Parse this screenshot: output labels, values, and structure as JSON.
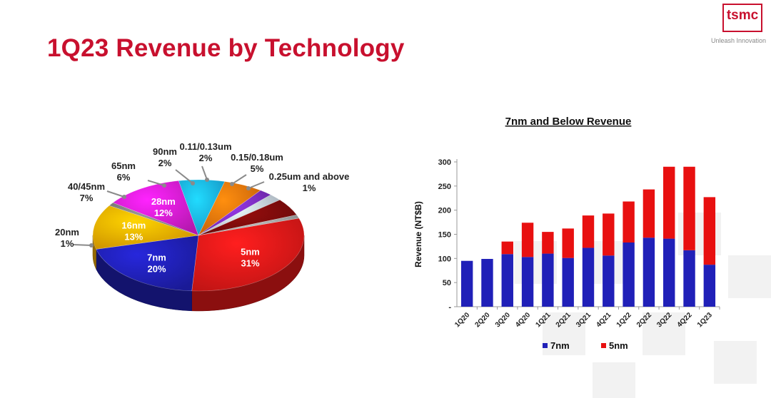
{
  "header": {
    "title": "1Q23 Revenue by Technology",
    "logo_text": "tsmc",
    "tagline": "Unleash Innovation"
  },
  "chart_data": [
    {
      "type": "pie",
      "title": "",
      "slices": [
        {
          "label": "5nm",
          "value": 31,
          "pct_label": "31%",
          "color": "#e01818"
        },
        {
          "label": "7nm",
          "value": 20,
          "pct_label": "20%",
          "color": "#1f1fb0"
        },
        {
          "label": "16nm",
          "value": 13,
          "pct_label": "13%",
          "color": "#f0aa00"
        },
        {
          "label": "20nm",
          "value": 1,
          "pct_label": "1%",
          "color": "#7a7a7a"
        },
        {
          "label": "28nm",
          "value": 12,
          "pct_label": "12%",
          "color": "#d41ccc"
        },
        {
          "label": "40/45nm",
          "value": 7,
          "pct_label": "7%",
          "color": "#1ab0e8"
        },
        {
          "label": "65nm",
          "value": 6,
          "pct_label": "6%",
          "color": "#e8720c"
        },
        {
          "label": "90nm",
          "value": 2,
          "pct_label": "2%",
          "color": "#7a2dbd"
        },
        {
          "label": "0.11/0.13um",
          "value": 2,
          "pct_label": "2%",
          "color": "#c0ccd8"
        },
        {
          "label": "0.15/0.18um",
          "value": 5,
          "pct_label": "5%",
          "color": "#7a0a0a"
        },
        {
          "label": "0.25um and above",
          "value": 1,
          "pct_label": "1%",
          "color": "#a0a0a0"
        }
      ]
    },
    {
      "type": "bar",
      "stacked": true,
      "title": "7nm and Below Revenue",
      "ylabel": "Revenue (NT$B)",
      "xlabel": "",
      "ylim": [
        0,
        300
      ],
      "yticks": [
        "-",
        "50",
        "100",
        "150",
        "200",
        "250",
        "300"
      ],
      "categories": [
        "1Q20",
        "2Q20",
        "3Q20",
        "4Q20",
        "1Q21",
        "2Q21",
        "3Q21",
        "4Q21",
        "1Q22",
        "2Q22",
        "3Q22",
        "4Q22",
        "1Q23"
      ],
      "series": [
        {
          "name": "7nm",
          "color": "#2020b8",
          "values": [
            95,
            99,
            109,
            103,
            110,
            101,
            122,
            106,
            133,
            143,
            141,
            117,
            87
          ]
        },
        {
          "name": "5nm",
          "color": "#e81010",
          "values": [
            0,
            0,
            26,
            71,
            45,
            61,
            67,
            87,
            85,
            100,
            149,
            173,
            140
          ]
        }
      ],
      "legend_position": "bottom",
      "grid": false
    }
  ]
}
